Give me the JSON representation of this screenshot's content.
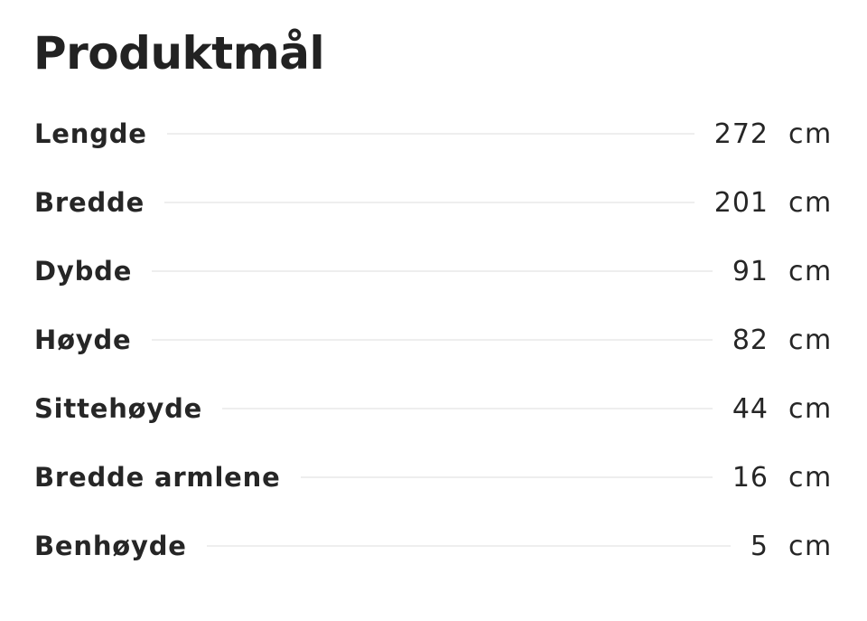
{
  "title": "Produktmål",
  "rows": [
    {
      "label": "Lengde",
      "value": "272",
      "unit": "cm"
    },
    {
      "label": "Bredde",
      "value": "201",
      "unit": "cm"
    },
    {
      "label": "Dybde",
      "value": "91",
      "unit": "cm"
    },
    {
      "label": "Høyde",
      "value": "82",
      "unit": "cm"
    },
    {
      "label": "Sittehøyde",
      "value": "44",
      "unit": "cm"
    },
    {
      "label": "Bredde armlene",
      "value": "16",
      "unit": "cm"
    },
    {
      "label": "Benhøyde",
      "value": "5",
      "unit": "cm"
    }
  ]
}
